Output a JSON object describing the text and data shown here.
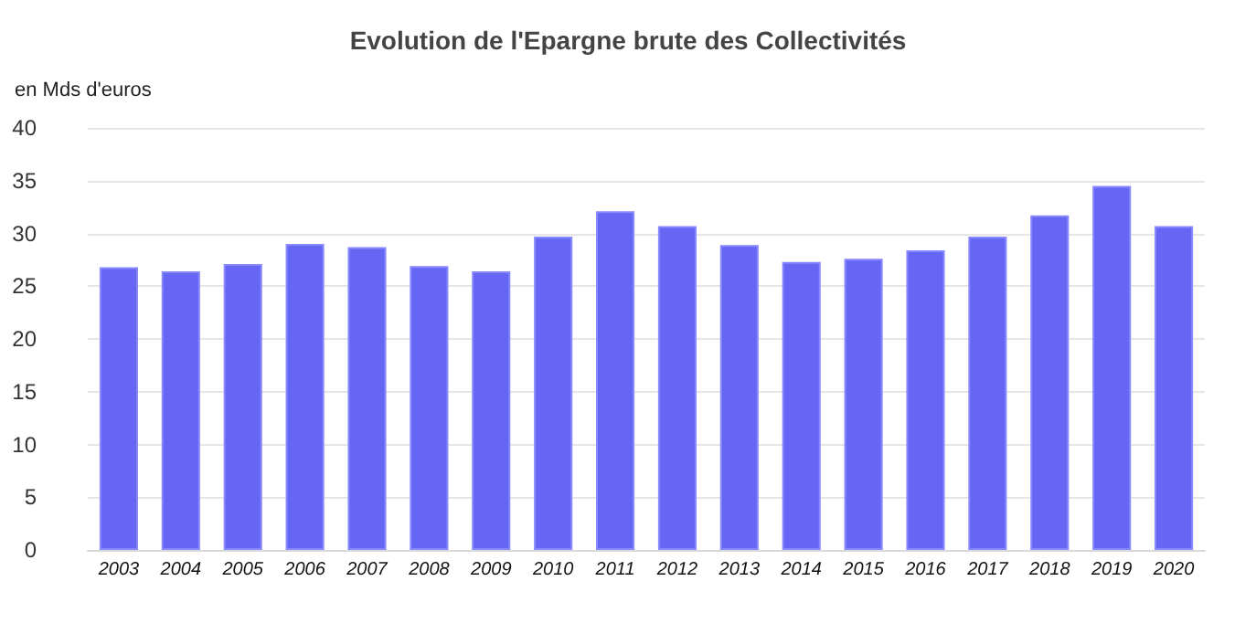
{
  "chart_data": {
    "type": "bar",
    "title": "Evolution de l'Epargne brute des Collectivités",
    "ylabel": "en Mds d'euros",
    "categories": [
      "2003",
      "2004",
      "2005",
      "2006",
      "2007",
      "2008",
      "2009",
      "2010",
      "2011",
      "2012",
      "2013",
      "2014",
      "2015",
      "2016",
      "2017",
      "2018",
      "2019",
      "2020"
    ],
    "values": [
      26.8,
      26.4,
      27.1,
      29.0,
      28.7,
      26.9,
      26.4,
      29.7,
      32.1,
      30.7,
      28.9,
      27.3,
      27.6,
      28.4,
      29.7,
      31.7,
      34.5,
      30.7
    ],
    "color": "#6666f5",
    "ylim": [
      0,
      40
    ],
    "yticks": [
      0,
      5,
      10,
      15,
      20,
      25,
      30,
      35,
      40
    ],
    "grid": "y"
  }
}
